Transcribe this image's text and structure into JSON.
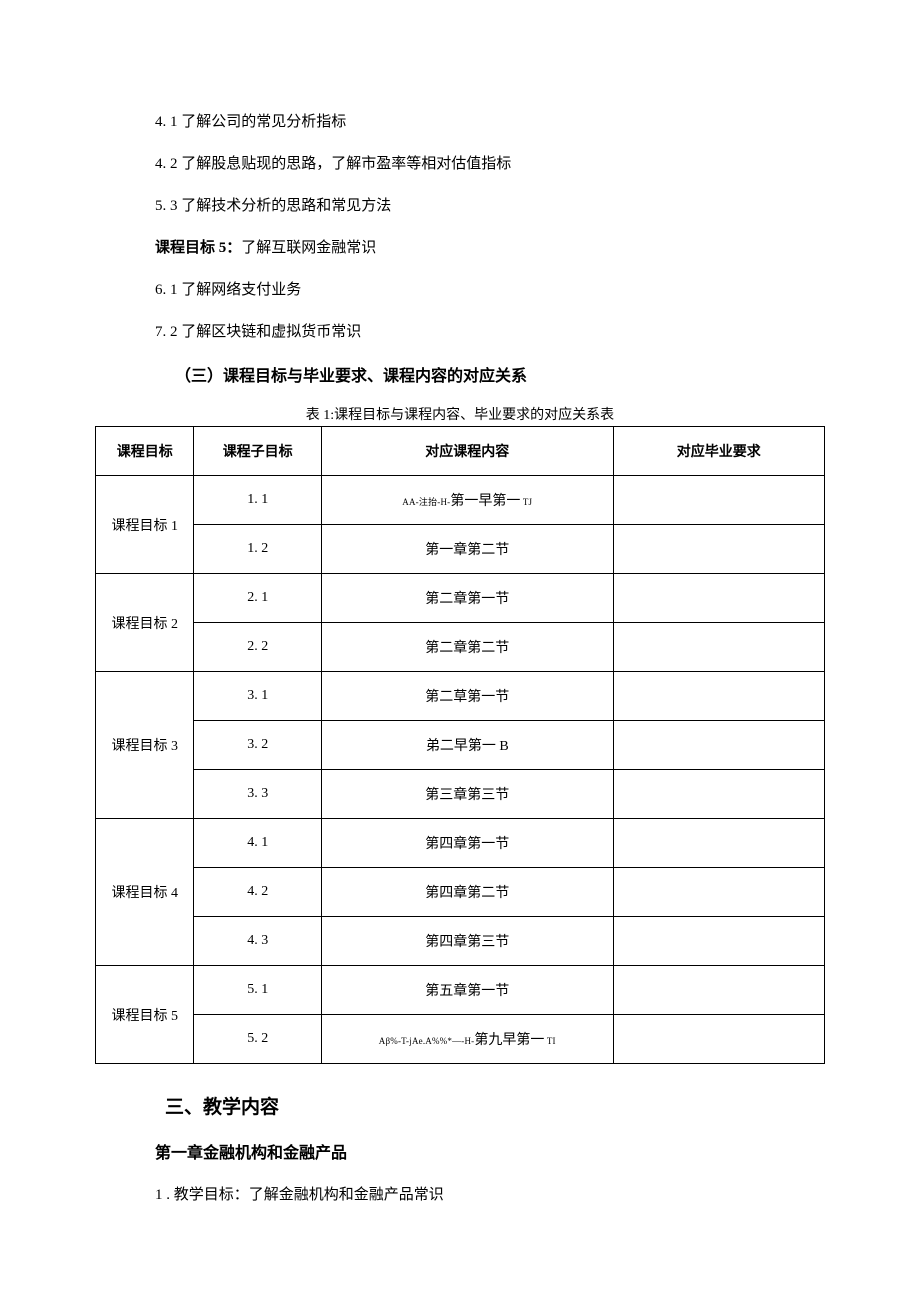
{
  "body_lines": [
    {
      "prefix": "4.",
      "text": " 1 了解公司的常见分析指标",
      "bold": false
    },
    {
      "prefix": "4.",
      "text": " 2 了解股息贴现的思路，了解市盈率等相对估值指标",
      "bold": false
    },
    {
      "prefix": "5.",
      "text": " 3 了解技术分析的思路和常见方法",
      "bold": false
    },
    {
      "prefix": "课程目标 5：",
      "text": "了解互联网金融常识",
      "bold": true
    },
    {
      "prefix": "6.",
      "text": " 1 了解网络支付业务",
      "bold": false
    },
    {
      "prefix": "7.",
      "text": " 2 了解区块链和虚拟货币常识",
      "bold": false
    }
  ],
  "heading_san": "（三）课程目标与毕业要求、课程内容的对应关系",
  "table_caption": "表 1:课程目标与课程内容、毕业要求的对应关系表",
  "table": {
    "headers": [
      "课程目标",
      "课程子目标",
      "对应课程内容",
      "对应毕业要求"
    ],
    "groups": [
      {
        "goal": "课程目标 1",
        "rows": [
          {
            "sub": "1. 1",
            "content_small": "AA-注抬-H-",
            "content": "第一早第一",
            "content_small2": " TJ",
            "req": ""
          },
          {
            "sub": "1. 2",
            "content": "第一章第二节",
            "req": ""
          }
        ]
      },
      {
        "goal": "课程目标 2",
        "rows": [
          {
            "sub": "2. 1",
            "content": "第二章第一节",
            "req": ""
          },
          {
            "sub": "2. 2",
            "content": "第二章第二节",
            "req": ""
          }
        ]
      },
      {
        "goal": "课程目标 3",
        "rows": [
          {
            "sub": "3. 1",
            "content": "第二草第一节",
            "req": ""
          },
          {
            "sub": "3. 2",
            "content": "弟二早第一 B",
            "req": ""
          },
          {
            "sub": "3. 3",
            "content": "第三章第三节",
            "req": ""
          }
        ]
      },
      {
        "goal": "课程目标 4",
        "rows": [
          {
            "sub": "4. 1",
            "content": "第四章第一节",
            "req": ""
          },
          {
            "sub": "4. 2",
            "content": "第四章第二节",
            "req": ""
          },
          {
            "sub": "4. 3",
            "content": "第四章第三节",
            "req": ""
          }
        ]
      },
      {
        "goal": "课程目标 5",
        "rows": [
          {
            "sub": "5. 1",
            "content": "第五章第一节",
            "req": ""
          },
          {
            "sub": "5. 2",
            "content_small": "Aβ%-T-jAe.A%%*—-H-",
            "content": "第九早第一",
            "content_small2": " TI",
            "req": ""
          }
        ]
      }
    ]
  },
  "section_heading": "三、教学内容",
  "chapter_heading": "第一章金融机构和金融产品",
  "teaching_goal": "1 . 教学目标：了解金融机构和金融产品常识"
}
